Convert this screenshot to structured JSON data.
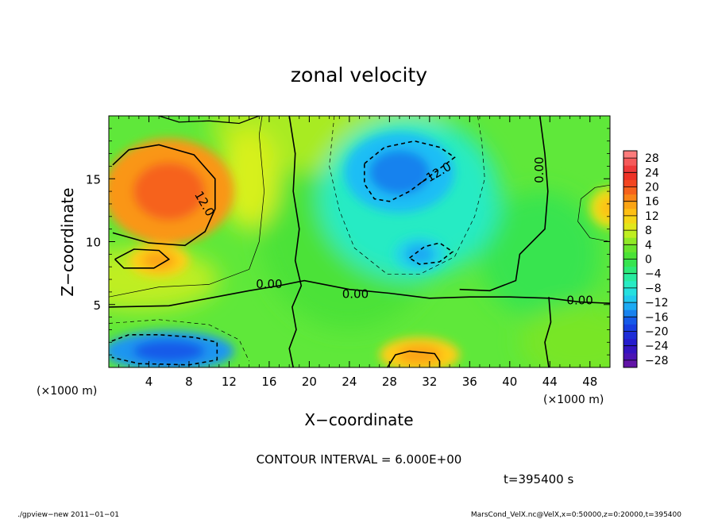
{
  "chart_data": {
    "type": "heatmap",
    "title": "zonal velocity",
    "xlabel": "X−coordinate",
    "ylabel": "Z−coordinate",
    "x_unit": "(×1000 m)",
    "x_unit_right": "(×1000 m)",
    "xlim": [
      0,
      50
    ],
    "ylim": [
      0,
      20
    ],
    "x_ticks": [
      4,
      8,
      12,
      16,
      20,
      24,
      28,
      32,
      36,
      40,
      44,
      48
    ],
    "y_ticks": [
      5,
      10,
      15
    ],
    "colorbar_ticks": [
      28,
      24,
      20,
      16,
      12,
      8,
      4,
      0,
      -4,
      -8,
      -12,
      -16,
      -20,
      -24,
      -28
    ],
    "colorbar_tick_labels": [
      "28",
      "24",
      "20",
      "16",
      "12",
      "8",
      "4",
      "0",
      "−4",
      "−8",
      "−12",
      "−16",
      "−20",
      "−24",
      "−28"
    ],
    "colorbar_range": [
      -30,
      30
    ],
    "contour_labels": [
      {
        "text": "12.0",
        "x": 9.5,
        "z": 13.0,
        "angle": 60
      },
      {
        "text": "−12.0",
        "x": 32.5,
        "z": 15.3,
        "angle": -30
      },
      {
        "text": "0.00",
        "x": 16.0,
        "z": 6.6,
        "angle": 0
      },
      {
        "text": "0.00",
        "x": 24.6,
        "z": 5.8,
        "angle": 0
      },
      {
        "text": "0.00",
        "x": 47.0,
        "z": 5.3,
        "angle": 0
      },
      {
        "text": "0.00",
        "x": 43.0,
        "z": 15.7,
        "angle": -90
      }
    ],
    "field_features": [
      {
        "name": "positive-max",
        "x": 6,
        "z": 14,
        "value": 16
      },
      {
        "name": "positive-small",
        "x": 5,
        "z": 8.5,
        "value": 12
      },
      {
        "name": "negative-max",
        "x": 29,
        "z": 15.5,
        "value": -12
      },
      {
        "name": "negative-small",
        "x": 31,
        "z": 9,
        "value": -10
      },
      {
        "name": "negative-bottom",
        "x": 6,
        "z": 1.3,
        "value": -14
      },
      {
        "name": "positive-bottom",
        "x": 31,
        "z": 1.0,
        "value": 12
      },
      {
        "name": "positive-right",
        "x": 50,
        "z": 12.7,
        "value": 10
      }
    ],
    "contour_interval_text": "CONTOUR INTERVAL = 6.000E+00",
    "time_text": "t=395400 s",
    "footer_left": "./gpview−new   2011−01−01",
    "footer_right": "MarsCond_VelX.nc@VelX,x=0:50000,z=0:20000,t=395400"
  }
}
